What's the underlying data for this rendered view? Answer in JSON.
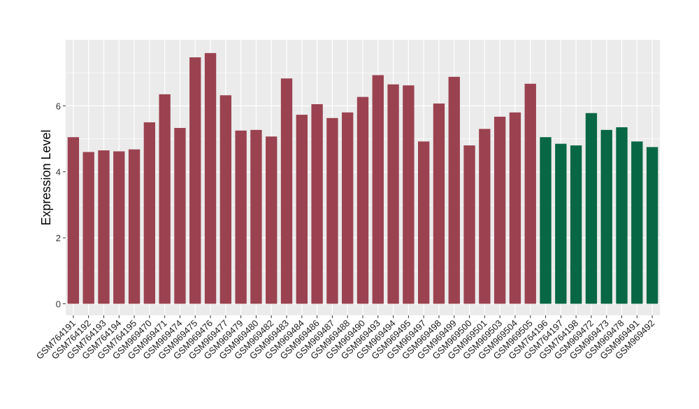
{
  "chart_data": {
    "type": "bar",
    "ylabel": "Expression Level",
    "xlabel": "",
    "ylim": [
      -0.35,
      8.0
    ],
    "yticks": [
      0,
      2,
      4,
      6
    ],
    "grid": true,
    "legend": "none",
    "colors": {
      "group1": "#9b4250",
      "group2": "#086745",
      "panel": "#ebebeb",
      "grid": "#ffffff"
    },
    "categories": [
      "GSM764191",
      "GSM764192",
      "GSM764193",
      "GSM764194",
      "GSM764195",
      "GSM969470",
      "GSM969471",
      "GSM969474",
      "GSM969475",
      "GSM969476",
      "GSM969477",
      "GSM969479",
      "GSM969480",
      "GSM969482",
      "GSM969483",
      "GSM969484",
      "GSM969486",
      "GSM969487",
      "GSM969488",
      "GSM969490",
      "GSM969493",
      "GSM969494",
      "GSM969495",
      "GSM969497",
      "GSM969498",
      "GSM969499",
      "GSM969500",
      "GSM969501",
      "GSM969503",
      "GSM969504",
      "GSM969505",
      "GSM764196",
      "GSM764197",
      "GSM764198",
      "GSM969472",
      "GSM969473",
      "GSM969478",
      "GSM969491",
      "GSM969492"
    ],
    "values": [
      5.05,
      4.6,
      4.65,
      4.62,
      4.68,
      5.5,
      6.35,
      5.33,
      7.47,
      7.6,
      6.32,
      5.25,
      5.27,
      5.07,
      6.83,
      5.73,
      6.05,
      5.63,
      5.8,
      6.27,
      6.93,
      6.65,
      6.62,
      4.92,
      6.07,
      6.88,
      4.8,
      5.3,
      5.67,
      5.8,
      6.67,
      5.05,
      4.85,
      4.8,
      5.78,
      5.27,
      5.35,
      4.92,
      4.75
    ],
    "groups": [
      "group1",
      "group1",
      "group1",
      "group1",
      "group1",
      "group1",
      "group1",
      "group1",
      "group1",
      "group1",
      "group1",
      "group1",
      "group1",
      "group1",
      "group1",
      "group1",
      "group1",
      "group1",
      "group1",
      "group1",
      "group1",
      "group1",
      "group1",
      "group1",
      "group1",
      "group1",
      "group1",
      "group1",
      "group1",
      "group1",
      "group1",
      "group2",
      "group2",
      "group2",
      "group2",
      "group2",
      "group2",
      "group2",
      "group2"
    ]
  }
}
